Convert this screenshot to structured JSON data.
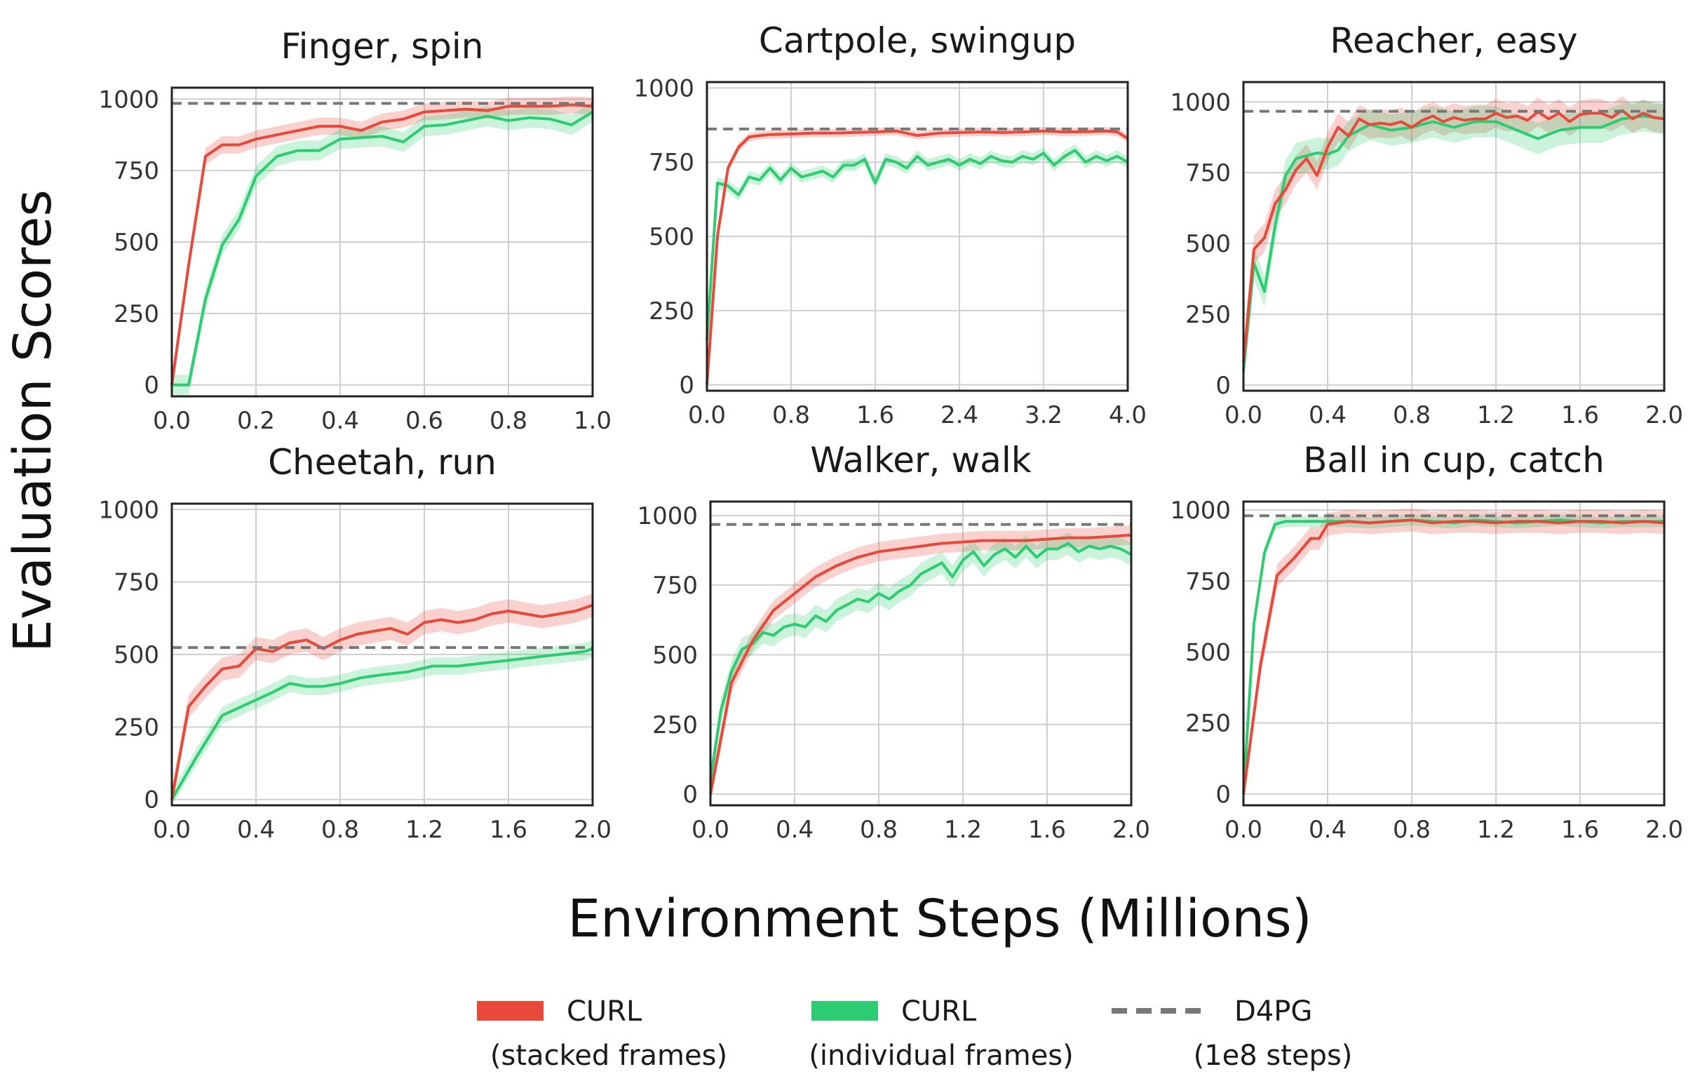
{
  "figure": {
    "ylabel": "Evaluation Scores",
    "xlabel": "Environment Steps (Millions)"
  },
  "legend": [
    {
      "label": "CURL",
      "sublabel": "(stacked frames)",
      "style": "solid",
      "color": "#e8493a"
    },
    {
      "label": "CURL",
      "sublabel": "(individual frames)",
      "style": "solid",
      "color": "#2ecc71"
    },
    {
      "label": "D4PG",
      "sublabel": "(1e8 steps)",
      "style": "dashed",
      "color": "#777777"
    }
  ],
  "colors": {
    "stacked": "#e8493a",
    "individual": "#2ecc71",
    "d4pg": "#777777"
  },
  "chart_data": [
    {
      "type": "line",
      "title": "Finger, spin",
      "xlim": [
        0,
        1.0
      ],
      "ylim": [
        -40,
        1040
      ],
      "xticks": [
        "0.0",
        "0.2",
        "0.4",
        "0.6",
        "0.8",
        "1.0"
      ],
      "yticks": [
        "0",
        "250",
        "500",
        "750",
        "1000"
      ],
      "d4pg": 985,
      "series": [
        {
          "key": "stacked",
          "std": 30,
          "x": [
            0,
            0.04,
            0.08,
            0.12,
            0.16,
            0.2,
            0.25,
            0.3,
            0.35,
            0.4,
            0.45,
            0.5,
            0.55,
            0.6,
            0.65,
            0.7,
            0.75,
            0.8,
            0.85,
            0.9,
            0.95,
            1.0
          ],
          "y": [
            0,
            420,
            800,
            840,
            840,
            860,
            875,
            890,
            905,
            905,
            890,
            920,
            930,
            955,
            960,
            965,
            960,
            975,
            975,
            975,
            980,
            975
          ]
        },
        {
          "key": "individual",
          "std": 35,
          "x": [
            0,
            0.04,
            0.08,
            0.12,
            0.16,
            0.2,
            0.25,
            0.3,
            0.35,
            0.4,
            0.45,
            0.5,
            0.55,
            0.6,
            0.65,
            0.7,
            0.75,
            0.8,
            0.85,
            0.9,
            0.95,
            1.0
          ],
          "y": [
            0,
            0,
            300,
            490,
            580,
            730,
            800,
            820,
            820,
            860,
            865,
            870,
            850,
            905,
            910,
            925,
            940,
            925,
            935,
            930,
            910,
            955
          ]
        }
      ]
    },
    {
      "type": "line",
      "title": "Cartpole, swingup",
      "xlim": [
        0,
        4.0
      ],
      "ylim": [
        -20,
        1020
      ],
      "xticks": [
        "0.0",
        "0.8",
        "1.6",
        "2.4",
        "3.2",
        "4.0"
      ],
      "yticks": [
        "0",
        "250",
        "500",
        "750",
        "1000"
      ],
      "d4pg": 862,
      "series": [
        {
          "key": "stacked",
          "std": 14,
          "x": [
            0,
            0.1,
            0.2,
            0.3,
            0.4,
            0.5,
            0.6,
            0.8,
            1.0,
            1.2,
            1.4,
            1.6,
            1.8,
            2.0,
            2.2,
            2.4,
            2.6,
            2.8,
            3.0,
            3.2,
            3.4,
            3.6,
            3.8,
            3.9,
            4.0
          ],
          "y": [
            0,
            500,
            730,
            800,
            835,
            840,
            843,
            845,
            848,
            848,
            850,
            852,
            855,
            840,
            848,
            850,
            852,
            850,
            852,
            855,
            852,
            853,
            855,
            852,
            830
          ]
        },
        {
          "key": "individual",
          "std": 20,
          "x": [
            0,
            0.1,
            0.2,
            0.3,
            0.4,
            0.5,
            0.6,
            0.7,
            0.8,
            0.9,
            1.0,
            1.1,
            1.2,
            1.3,
            1.4,
            1.5,
            1.6,
            1.7,
            1.8,
            1.9,
            2.0,
            2.1,
            2.2,
            2.3,
            2.4,
            2.5,
            2.6,
            2.7,
            2.8,
            2.9,
            3.0,
            3.1,
            3.2,
            3.3,
            3.4,
            3.5,
            3.6,
            3.7,
            3.8,
            3.9,
            4.0
          ],
          "y": [
            150,
            680,
            670,
            640,
            700,
            690,
            730,
            690,
            730,
            700,
            710,
            720,
            700,
            740,
            740,
            760,
            680,
            760,
            750,
            730,
            770,
            740,
            750,
            760,
            740,
            760,
            745,
            770,
            755,
            750,
            770,
            760,
            780,
            740,
            770,
            790,
            750,
            770,
            755,
            770,
            750
          ]
        }
      ]
    },
    {
      "type": "line",
      "title": "Reacher, easy",
      "xlim": [
        0,
        2.0
      ],
      "ylim": [
        -20,
        1070
      ],
      "xticks": [
        "0.0",
        "0.4",
        "0.8",
        "1.2",
        "1.6",
        "2.0"
      ],
      "yticks": [
        "0",
        "250",
        "500",
        "750",
        "1000"
      ],
      "d4pg": 967,
      "series": [
        {
          "key": "stacked",
          "std": 50,
          "x": [
            0,
            0.05,
            0.1,
            0.15,
            0.2,
            0.25,
            0.3,
            0.35,
            0.4,
            0.45,
            0.5,
            0.55,
            0.6,
            0.65,
            0.7,
            0.75,
            0.8,
            0.85,
            0.9,
            0.95,
            1.0,
            1.05,
            1.1,
            1.15,
            1.2,
            1.25,
            1.3,
            1.35,
            1.4,
            1.45,
            1.5,
            1.55,
            1.6,
            1.65,
            1.7,
            1.75,
            1.8,
            1.85,
            1.9,
            1.95,
            2.0
          ],
          "y": [
            80,
            480,
            520,
            640,
            690,
            760,
            800,
            740,
            840,
            910,
            880,
            940,
            920,
            925,
            920,
            930,
            910,
            935,
            950,
            930,
            945,
            935,
            940,
            940,
            960,
            945,
            950,
            935,
            965,
            940,
            960,
            930,
            955,
            960,
            960,
            945,
            970,
            940,
            960,
            945,
            940
          ]
        },
        {
          "key": "individual",
          "std": 55,
          "x": [
            0,
            0.05,
            0.1,
            0.15,
            0.2,
            0.25,
            0.3,
            0.35,
            0.4,
            0.45,
            0.5,
            0.55,
            0.6,
            0.65,
            0.7,
            0.8,
            0.9,
            1.0,
            1.1,
            1.2,
            1.3,
            1.4,
            1.5,
            1.6,
            1.7,
            1.8,
            1.9,
            2.0
          ],
          "y": [
            50,
            430,
            330,
            560,
            740,
            800,
            810,
            820,
            815,
            830,
            880,
            900,
            920,
            910,
            900,
            910,
            930,
            910,
            930,
            930,
            900,
            870,
            900,
            910,
            910,
            940,
            950,
            940
          ]
        }
      ]
    },
    {
      "type": "line",
      "title": "Cheetah, run",
      "xlim": [
        0,
        2.0
      ],
      "ylim": [
        -20,
        1020
      ],
      "xticks": [
        "0.0",
        "0.4",
        "0.8",
        "1.2",
        "1.6",
        "2.0"
      ],
      "yticks": [
        "0",
        "250",
        "500",
        "750",
        "1000"
      ],
      "d4pg": 524,
      "series": [
        {
          "key": "stacked",
          "std": 40,
          "x": [
            0,
            0.08,
            0.16,
            0.24,
            0.32,
            0.4,
            0.48,
            0.56,
            0.64,
            0.72,
            0.8,
            0.88,
            0.96,
            1.04,
            1.12,
            1.2,
            1.28,
            1.36,
            1.44,
            1.52,
            1.6,
            1.68,
            1.76,
            1.84,
            1.92,
            2.0
          ],
          "y": [
            0,
            320,
            390,
            450,
            460,
            520,
            510,
            540,
            550,
            520,
            550,
            570,
            580,
            590,
            570,
            610,
            620,
            610,
            620,
            640,
            650,
            640,
            630,
            640,
            650,
            670
          ]
        },
        {
          "key": "individual",
          "std": 30,
          "x": [
            0,
            0.12,
            0.24,
            0.36,
            0.48,
            0.56,
            0.64,
            0.72,
            0.8,
            0.9,
            1.0,
            1.12,
            1.24,
            1.36,
            1.48,
            1.6,
            1.72,
            1.84,
            1.96,
            2.0
          ],
          "y": [
            0,
            150,
            290,
            330,
            370,
            400,
            390,
            390,
            400,
            420,
            430,
            440,
            460,
            460,
            470,
            480,
            490,
            500,
            510,
            520
          ]
        }
      ]
    },
    {
      "type": "line",
      "title": "Walker, walk",
      "xlim": [
        0,
        2.0
      ],
      "ylim": [
        -40,
        1050
      ],
      "xticks": [
        "0.0",
        "0.4",
        "0.8",
        "1.2",
        "1.6",
        "2.0"
      ],
      "yticks": [
        "0",
        "250",
        "500",
        "750",
        "1000"
      ],
      "d4pg": 968,
      "series": [
        {
          "key": "stacked",
          "std": 35,
          "x": [
            0,
            0.1,
            0.2,
            0.3,
            0.4,
            0.5,
            0.6,
            0.7,
            0.8,
            0.9,
            1.0,
            1.1,
            1.2,
            1.3,
            1.4,
            1.5,
            1.6,
            1.7,
            1.8,
            1.9,
            2.0
          ],
          "y": [
            0,
            400,
            550,
            660,
            720,
            780,
            820,
            850,
            870,
            880,
            890,
            900,
            905,
            910,
            910,
            910,
            915,
            920,
            920,
            925,
            930
          ]
        },
        {
          "key": "individual",
          "std": 40,
          "x": [
            0,
            0.05,
            0.1,
            0.15,
            0.2,
            0.25,
            0.3,
            0.35,
            0.4,
            0.45,
            0.5,
            0.55,
            0.6,
            0.65,
            0.7,
            0.75,
            0.8,
            0.85,
            0.9,
            0.95,
            1.0,
            1.05,
            1.1,
            1.15,
            1.2,
            1.25,
            1.3,
            1.35,
            1.4,
            1.45,
            1.5,
            1.55,
            1.6,
            1.65,
            1.7,
            1.75,
            1.8,
            1.85,
            1.9,
            1.95,
            2.0
          ],
          "y": [
            50,
            300,
            440,
            520,
            540,
            580,
            570,
            600,
            610,
            600,
            640,
            620,
            660,
            680,
            700,
            690,
            720,
            700,
            730,
            750,
            790,
            810,
            830,
            780,
            840,
            870,
            820,
            860,
            880,
            850,
            890,
            850,
            880,
            880,
            900,
            870,
            890,
            880,
            890,
            880,
            860
          ]
        }
      ]
    },
    {
      "type": "line",
      "title": "Ball in cup, catch",
      "xlim": [
        0,
        2.0
      ],
      "ylim": [
        -40,
        1030
      ],
      "xticks": [
        "0.0",
        "0.4",
        "0.8",
        "1.2",
        "1.6",
        "2.0"
      ],
      "yticks": [
        "0",
        "250",
        "500",
        "750",
        "1000"
      ],
      "d4pg": 980,
      "series": [
        {
          "key": "stacked",
          "std": 40,
          "x": [
            0,
            0.08,
            0.16,
            0.24,
            0.32,
            0.36,
            0.4,
            0.5,
            0.6,
            0.7,
            0.8,
            0.9,
            1.0,
            1.1,
            1.2,
            1.3,
            1.4,
            1.5,
            1.6,
            1.7,
            1.8,
            1.9,
            2.0
          ],
          "y": [
            0,
            450,
            770,
            830,
            900,
            900,
            950,
            960,
            955,
            960,
            965,
            955,
            960,
            960,
            955,
            960,
            960,
            955,
            960,
            960,
            955,
            960,
            955
          ]
        },
        {
          "key": "individual",
          "std": 20,
          "x": [
            0,
            0.05,
            0.1,
            0.15,
            0.2,
            0.3,
            0.4,
            0.5,
            0.6,
            0.7,
            0.8,
            0.9,
            1.0,
            1.1,
            1.2,
            1.3,
            1.4,
            1.5,
            1.6,
            1.7,
            1.8,
            1.9,
            2.0
          ],
          "y": [
            0,
            600,
            850,
            950,
            960,
            960,
            960,
            960,
            955,
            960,
            965,
            960,
            955,
            965,
            960,
            955,
            960,
            965,
            960,
            955,
            960,
            960,
            960
          ]
        }
      ]
    }
  ]
}
